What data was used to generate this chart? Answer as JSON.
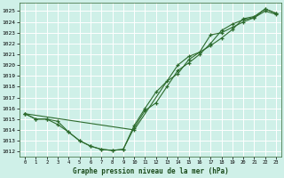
{
  "title": "Graphe pression niveau de la mer (hPa)",
  "bg_color": "#cff0e8",
  "grid_color": "#b0ddd0",
  "line_color": "#2d6b2d",
  "ylim": [
    1011.5,
    1025.8
  ],
  "yticks": [
    1012,
    1013,
    1014,
    1015,
    1016,
    1017,
    1018,
    1019,
    1020,
    1021,
    1022,
    1023,
    1024,
    1025
  ],
  "xticks": [
    0,
    1,
    2,
    3,
    4,
    5,
    6,
    7,
    8,
    9,
    10,
    11,
    12,
    13,
    14,
    15,
    16,
    17,
    18,
    19,
    20,
    21,
    22,
    23
  ],
  "series": [
    {
      "x": [
        0,
        1,
        2,
        3,
        4,
        5,
        6,
        7,
        8,
        9,
        10,
        11,
        12,
        13,
        14,
        15,
        16,
        17,
        18,
        19,
        20,
        21,
        22,
        23
      ],
      "y": [
        1015.5,
        1015.0,
        1015.0,
        1014.8,
        1013.8,
        1013.0,
        1012.5,
        1012.2,
        1012.1,
        1012.2,
        1014.4,
        1016.0,
        1017.5,
        1018.5,
        1019.2,
        1020.5,
        1021.2,
        1021.8,
        1022.5,
        1023.3,
        1024.3,
        1024.5,
        1025.2,
        1024.8
      ]
    },
    {
      "x": [
        0,
        1,
        2,
        3,
        4,
        5,
        6,
        7,
        8,
        9,
        10,
        11,
        12,
        13,
        14,
        15,
        16,
        17,
        18,
        19,
        20,
        21,
        22,
        23
      ],
      "y": [
        1015.5,
        1015.0,
        1015.0,
        1014.5,
        1013.8,
        1013.0,
        1012.5,
        1012.2,
        1012.1,
        1012.2,
        1014.2,
        1015.8,
        1016.5,
        1018.0,
        1019.5,
        1020.2,
        1021.0,
        1022.0,
        1023.2,
        1023.8,
        1024.2,
        1024.4,
        1025.0,
        1024.7
      ]
    },
    {
      "x": [
        0,
        10,
        14,
        15,
        16,
        17,
        18,
        19,
        20,
        21,
        22,
        23
      ],
      "y": [
        1015.5,
        1014.0,
        1020.0,
        1020.8,
        1021.2,
        1022.8,
        1023.0,
        1023.5,
        1024.0,
        1024.4,
        1025.2,
        1024.8
      ]
    }
  ]
}
